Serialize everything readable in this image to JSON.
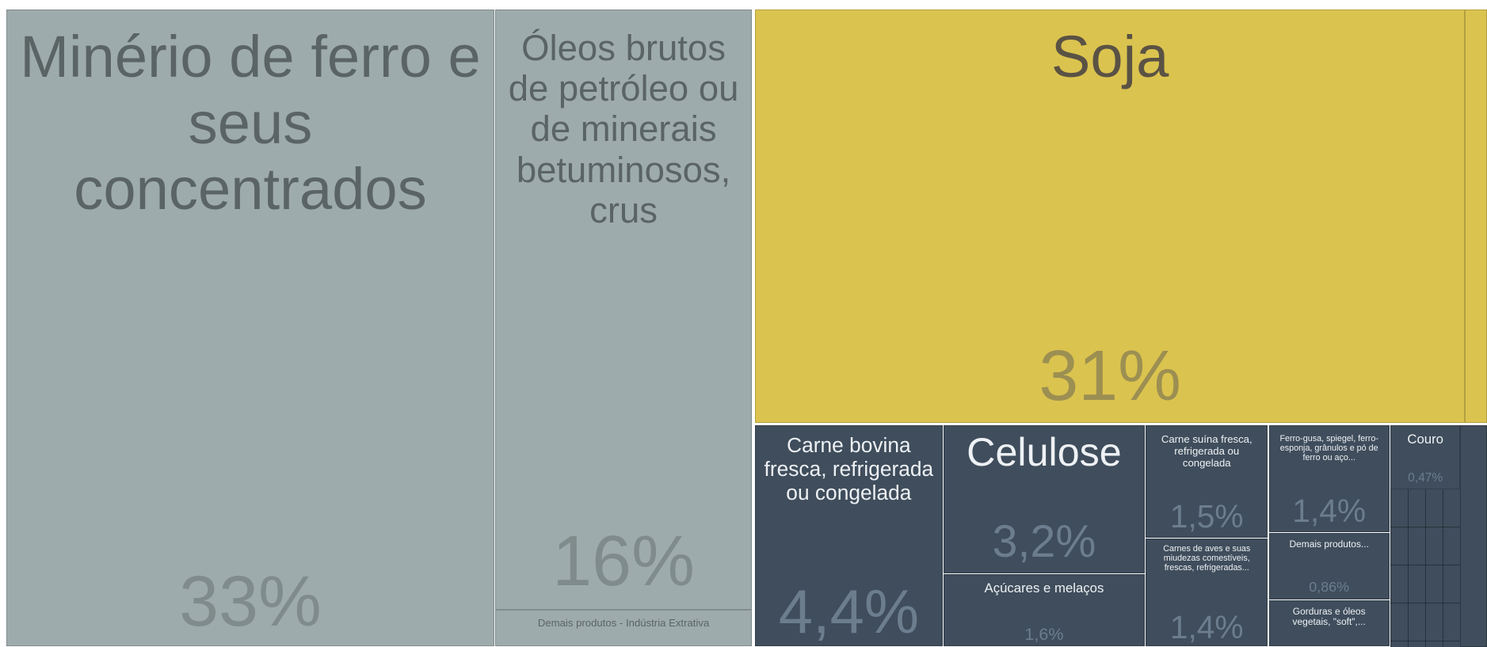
{
  "chart_data": {
    "type": "treemap",
    "items": [
      {
        "name": "Minério de ferro e seus concentrados",
        "value": 33,
        "value_label": "33%",
        "color": "#9eabac"
      },
      {
        "name": "Óleos brutos de petróleo ou de minerais betuminosos, crus",
        "value": 16,
        "value_label": "16%",
        "color": "#9eabac"
      },
      {
        "name": "Demais produtos - Indústria Extrativa",
        "value": 1.0,
        "color": "#9eabac"
      },
      {
        "name": "Soja",
        "value": 31,
        "value_label": "31%",
        "color": "#dbc34f"
      },
      {
        "name": "Carne bovina fresca, refrigerada ou congelada",
        "value": 4.4,
        "value_label": "4,4%",
        "color": "#3f4d5c"
      },
      {
        "name": "Celulose",
        "value": 3.2,
        "value_label": "3,2%",
        "color": "#3f4d5c"
      },
      {
        "name": "Açúcares e melaços",
        "value": 1.6,
        "value_label": "1,6%",
        "color": "#3f4d5c"
      },
      {
        "name": "Carne suína fresca, refrigerada ou congelada",
        "value": 1.5,
        "value_label": "1,5%",
        "color": "#3f4d5c"
      },
      {
        "name": "Carnes de aves e suas miudezas comestíveis, frescas, refrigeradas...",
        "value": 1.4,
        "value_label": "1,4%",
        "color": "#3f4d5c"
      },
      {
        "name": "Ferro-gusa, spiegel, ferro-esponja, grânulos e pó de ferro ou aço...",
        "value": 1.4,
        "value_label": "1,4%",
        "color": "#3f4d5c"
      },
      {
        "name": "Demais produtos...",
        "value": 0.86,
        "value_label": "0,86%",
        "color": "#3f4d5c"
      },
      {
        "name": "Gorduras e óleos vegetais, \"soft\",...",
        "value": 0.6,
        "color": "#3f4d5c"
      },
      {
        "name": "Couro",
        "value": 0.47,
        "value_label": "0,47%",
        "color": "#3f4d5c"
      }
    ]
  }
}
